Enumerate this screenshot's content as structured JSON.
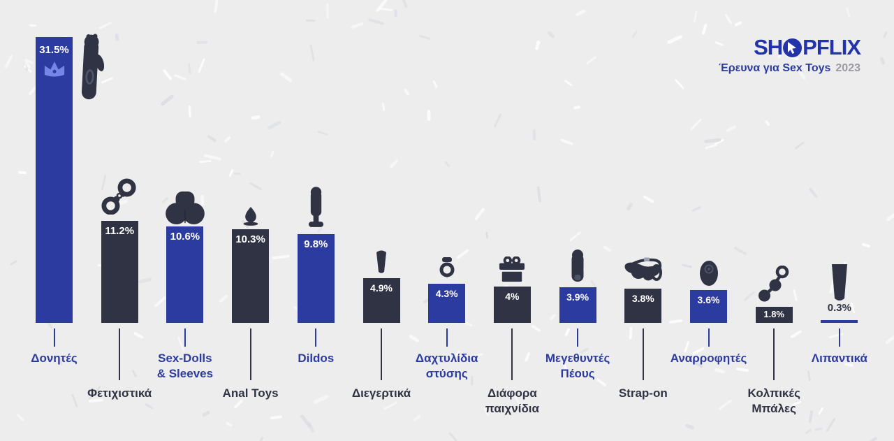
{
  "header": {
    "logo_text": "SHOPFLIX",
    "logo_left": "SH",
    "logo_right": "PFLIX",
    "subtitle": "Έρευνα για Sex Toys",
    "year": "2023"
  },
  "colors": {
    "background": "#ededee",
    "bar_blue": "#2c3b9f",
    "bar_dark": "#2f3343",
    "label_blue": "#2b3b9e",
    "label_dark": "#2f3343",
    "percent_text": "#ffffff",
    "crown": "#7585e8",
    "logo_blue": "#2334aa",
    "year_gray": "#9a9ba4"
  },
  "chart_data": {
    "type": "bar",
    "title": "Έρευνα για Sex Toys 2023",
    "value_unit": "%",
    "ylim": [
      0,
      31.5
    ],
    "grid": false,
    "legend": "none",
    "categories": [
      "Δονητές",
      "Φετιχιστικά",
      "Sex-Dolls & Sleeves",
      "Anal Toys",
      "Dildos",
      "Διεγερτικά",
      "Δαχτυλίδια στύσης",
      "Διάφορα παιχνίδια",
      "Μεγεθυντές Πέους",
      "Strap-on",
      "Αναρροφητές",
      "Κολπικές Μπάλες",
      "Λιπαντικά"
    ],
    "values": [
      31.5,
      11.2,
      10.6,
      10.3,
      9.8,
      4.9,
      4.3,
      4,
      3.9,
      3.8,
      3.6,
      1.8,
      0.3
    ],
    "bars": [
      {
        "label": "Δονητές",
        "display_label": "Δονητές",
        "value": 31.5,
        "value_label": "31.5%",
        "color": "blue",
        "icon": "rabbit-vibrator-icon",
        "badge": "crown-icon"
      },
      {
        "label": "Φετιχιστικά",
        "display_label": "Φετιχιστικά",
        "value": 11.2,
        "value_label": "11.2%",
        "color": "dark",
        "icon": "handcuffs-icon"
      },
      {
        "label": "Sex-Dolls & Sleeves",
        "display_label": "Sex-Dolls\n& Sleeves",
        "value": 10.6,
        "value_label": "10.6%",
        "color": "blue",
        "icon": "doll-torso-icon"
      },
      {
        "label": "Anal Toys",
        "display_label": "Anal Toys",
        "value": 10.3,
        "value_label": "10.3%",
        "color": "dark",
        "icon": "butt-plug-icon"
      },
      {
        "label": "Dildos",
        "display_label": "Dildos",
        "value": 9.8,
        "value_label": "9.8%",
        "color": "blue",
        "icon": "dildo-icon"
      },
      {
        "label": "Διεγερτικά",
        "display_label": "Διεγερτικά",
        "value": 4.9,
        "value_label": "4.9%",
        "color": "dark",
        "icon": "bullet-vibrator-icon"
      },
      {
        "label": "Δαχτυλίδια στύσης",
        "display_label": "Δαχτυλίδια\nστύσης",
        "value": 4.3,
        "value_label": "4.3%",
        "color": "blue",
        "icon": "cock-ring-icon"
      },
      {
        "label": "Διάφορα παιχνίδια",
        "display_label": "Διάφορα\nπαιχνίδια",
        "value": 4,
        "value_label": "4%",
        "color": "dark",
        "icon": "gift-box-icon"
      },
      {
        "label": "Μεγεθυντές Πέους",
        "display_label": "Μεγεθυντές\nΠέους",
        "value": 3.9,
        "value_label": "3.9%",
        "color": "blue",
        "icon": "penis-sleeve-icon"
      },
      {
        "label": "Strap-on",
        "display_label": "Strap-on",
        "value": 3.8,
        "value_label": "3.8%",
        "color": "dark",
        "icon": "strap-on-harness-icon"
      },
      {
        "label": "Αναρροφητές",
        "display_label": "Αναρροφητές",
        "value": 3.6,
        "value_label": "3.6%",
        "color": "blue",
        "icon": "suction-egg-icon"
      },
      {
        "label": "Κολπικές Μπάλες",
        "display_label": "Κολπικές\nΜπάλες",
        "value": 1.8,
        "value_label": "1.8%",
        "color": "dark",
        "icon": "kegel-balls-icon"
      },
      {
        "label": "Λιπαντικά",
        "display_label": "Λιπαντικά",
        "value": 0.3,
        "value_label": "0.3%",
        "color": "blue",
        "icon": "lube-tube-icon"
      }
    ]
  }
}
